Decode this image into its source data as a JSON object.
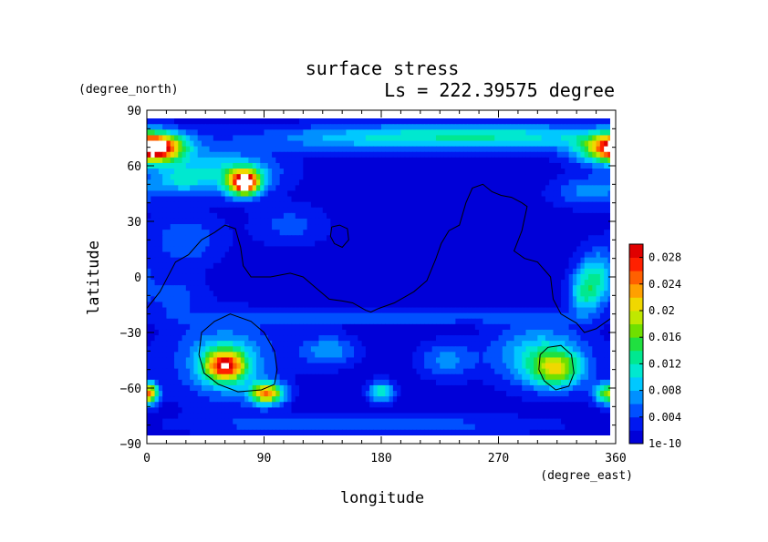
{
  "chart_data": {
    "type": "heatmap",
    "title": "surface stress",
    "subtitle": "Ls = 222.39575 degree",
    "xlabel": "longitude",
    "ylabel": "latitude",
    "x_unit": "(degree_east)",
    "y_unit": "(degree_north)",
    "xlim": [
      0,
      360
    ],
    "ylim": [
      -90,
      90
    ],
    "x_ticks": [
      "0",
      "90",
      "180",
      "270",
      "360"
    ],
    "y_ticks": [
      "90",
      "60",
      "30",
      "0",
      "−30",
      "−60",
      "−90"
    ],
    "x_tick_values": [
      0,
      90,
      180,
      270,
      360
    ],
    "y_tick_values": [
      90,
      60,
      30,
      0,
      -30,
      -60,
      -90
    ],
    "colorbar": {
      "labels": [
        "0.028",
        "0.024",
        "0.02",
        "0.016",
        "0.012",
        "0.008",
        "0.004",
        "1e-10"
      ],
      "label_values": [
        0.028,
        0.024,
        0.02,
        0.016,
        0.012,
        0.008,
        0.004,
        0
      ],
      "min": 0,
      "max": 0.03,
      "colors": [
        "#0000d8",
        "#0018f0",
        "#0050ff",
        "#0090ff",
        "#00c8ff",
        "#00e8d0",
        "#00e890",
        "#20e040",
        "#70e000",
        "#c0e800",
        "#f0d800",
        "#ffa000",
        "#ff6000",
        "#ff2000",
        "#e00000"
      ]
    },
    "hotspots": [
      {
        "lon": 75,
        "lat": 51,
        "sx": 9,
        "sy": 5,
        "value": 0.026
      },
      {
        "lon": 75,
        "lat": 51,
        "sx": 3,
        "sy": 2.5,
        "value": 0.01
      },
      {
        "lon": 6,
        "lat": 70,
        "sx": 14,
        "sy": 5,
        "value": 0.02
      },
      {
        "lon": 358,
        "lat": 69,
        "sx": 22,
        "sy": 6,
        "value": 0.016
      },
      {
        "lon": 270,
        "lat": 76,
        "sx": 60,
        "sy": 5,
        "value": 0.01
      },
      {
        "lon": 160,
        "lat": 75,
        "sx": 60,
        "sy": 5,
        "value": 0.007
      },
      {
        "lon": 60,
        "lat": 57,
        "sx": 30,
        "sy": 8,
        "value": 0.009
      },
      {
        "lon": 25,
        "lat": 52,
        "sx": 15,
        "sy": 5,
        "value": 0.006
      },
      {
        "lon": 340,
        "lat": 46,
        "sx": 20,
        "sy": 6,
        "value": 0.006
      },
      {
        "lon": 30,
        "lat": 20,
        "sx": 20,
        "sy": 10,
        "value": 0.005
      },
      {
        "lon": 110,
        "lat": 28,
        "sx": 20,
        "sy": 8,
        "value": 0.004
      },
      {
        "lon": 345,
        "lat": 0,
        "sx": 10,
        "sy": 10,
        "value": 0.01
      },
      {
        "lon": 335,
        "lat": -10,
        "sx": 8,
        "sy": 8,
        "value": 0.008
      },
      {
        "lon": 20,
        "lat": -10,
        "sx": 15,
        "sy": 8,
        "value": 0.004
      },
      {
        "lon": 180,
        "lat": -22,
        "sx": 90,
        "sy": 2.5,
        "value": 0.005
      },
      {
        "lon": 60,
        "lat": -48,
        "sx": 11,
        "sy": 6,
        "value": 0.022
      },
      {
        "lon": 92,
        "lat": -63,
        "sx": 9,
        "sy": 4,
        "value": 0.022
      },
      {
        "lon": 60,
        "lat": -45,
        "sx": 28,
        "sy": 16,
        "value": 0.008
      },
      {
        "lon": 315,
        "lat": -50,
        "sx": 14,
        "sy": 7,
        "value": 0.014
      },
      {
        "lon": 300,
        "lat": -42,
        "sx": 25,
        "sy": 12,
        "value": 0.009
      },
      {
        "lon": 355,
        "lat": -63,
        "sx": 8,
        "sy": 4,
        "value": 0.016
      },
      {
        "lon": 3,
        "lat": -63,
        "sx": 4,
        "sy": 4,
        "value": 0.012
      },
      {
        "lon": 180,
        "lat": -62,
        "sx": 7,
        "sy": 4,
        "value": 0.011
      },
      {
        "lon": 140,
        "lat": -40,
        "sx": 15,
        "sy": 6,
        "value": 0.007
      },
      {
        "lon": 230,
        "lat": -45,
        "sx": 15,
        "sy": 7,
        "value": 0.006
      },
      {
        "lon": 170,
        "lat": -80,
        "sx": 90,
        "sy": 4,
        "value": 0.005
      },
      {
        "lon": 200,
        "lat": 10,
        "sx": 30,
        "sy": 15,
        "value": 0.001
      }
    ],
    "contours": [
      [
        [
          0,
          -17
        ],
        [
          10,
          -8
        ],
        [
          22,
          8
        ],
        [
          32,
          12
        ],
        [
          42,
          20
        ],
        [
          52,
          24
        ],
        [
          60,
          28
        ],
        [
          68,
          26
        ],
        [
          72,
          16
        ],
        [
          74,
          6
        ],
        [
          80,
          0
        ],
        [
          95,
          0
        ],
        [
          110,
          2
        ],
        [
          120,
          0
        ],
        [
          130,
          -6
        ],
        [
          140,
          -12
        ],
        [
          150,
          -13
        ],
        [
          158,
          -14
        ],
        [
          168,
          -18
        ],
        [
          172,
          -19
        ],
        [
          178,
          -17
        ],
        [
          190,
          -14
        ],
        [
          205,
          -8
        ],
        [
          215,
          -2
        ],
        [
          222,
          10
        ],
        [
          226,
          18
        ],
        [
          232,
          25
        ],
        [
          240,
          28
        ],
        [
          245,
          40
        ],
        [
          250,
          48
        ],
        [
          258,
          50
        ],
        [
          265,
          46
        ],
        [
          272,
          44
        ],
        [
          280,
          43
        ],
        [
          288,
          40
        ],
        [
          292,
          38
        ],
        [
          288,
          25
        ],
        [
          282,
          14
        ],
        [
          290,
          10
        ],
        [
          300,
          8
        ],
        [
          310,
          0
        ],
        [
          312,
          -12
        ],
        [
          318,
          -20
        ],
        [
          330,
          -25
        ],
        [
          336,
          -30
        ],
        [
          345,
          -28
        ],
        [
          355,
          -23
        ],
        [
          360,
          -20
        ]
      ],
      [
        [
          142,
          27
        ],
        [
          148,
          28
        ],
        [
          154,
          26
        ],
        [
          155,
          20
        ],
        [
          150,
          16
        ],
        [
          144,
          18
        ],
        [
          141,
          22
        ],
        [
          142,
          27
        ]
      ],
      [
        [
          40,
          -42
        ],
        [
          42,
          -30
        ],
        [
          52,
          -24
        ],
        [
          64,
          -20
        ],
        [
          80,
          -24
        ],
        [
          90,
          -30
        ],
        [
          98,
          -40
        ],
        [
          100,
          -50
        ],
        [
          98,
          -58
        ],
        [
          88,
          -61
        ],
        [
          70,
          -62
        ],
        [
          55,
          -58
        ],
        [
          44,
          -52
        ],
        [
          40,
          -42
        ]
      ],
      [
        [
          302,
          -42
        ],
        [
          308,
          -38
        ],
        [
          318,
          -37
        ],
        [
          326,
          -42
        ],
        [
          328,
          -52
        ],
        [
          324,
          -59
        ],
        [
          314,
          -61
        ],
        [
          305,
          -56
        ],
        [
          301,
          -50
        ],
        [
          302,
          -42
        ]
      ]
    ]
  }
}
